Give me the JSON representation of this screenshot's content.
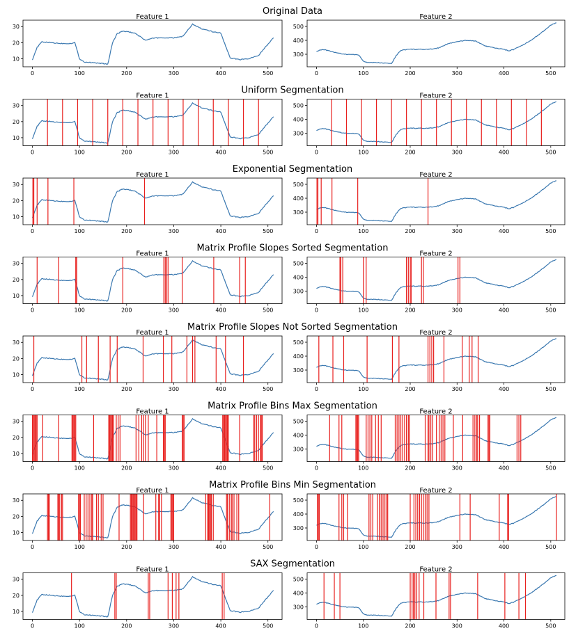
{
  "figure": {
    "line_color": "#3a78b0",
    "seg_color": "#e8201e",
    "subplot_titles": [
      "Feature 1",
      "Feature 2"
    ]
  },
  "chart_data": [
    {
      "type": "line",
      "title": "Original Data",
      "x": [
        0,
        10,
        20,
        40,
        60,
        80,
        90,
        100,
        110,
        130,
        150,
        160,
        170,
        180,
        190,
        200,
        220,
        240,
        260,
        280,
        300,
        320,
        340,
        360,
        380,
        400,
        410,
        420,
        440,
        460,
        480,
        500,
        512
      ],
      "series": [
        {
          "values": [
            9.5,
            17,
            20.5,
            20,
            19.5,
            19.5,
            20,
            10,
            8,
            7.5,
            7,
            6.5,
            20,
            25.5,
            27,
            27,
            25.5,
            21.5,
            23,
            23,
            23,
            24,
            31.5,
            28.5,
            27,
            26,
            18,
            10.5,
            9.5,
            10,
            12,
            19,
            23
          ]
        },
        {
          "values": [
            320,
            333,
            330,
            312,
            300,
            298,
            295,
            250,
            240,
            240,
            237,
            233,
            290,
            328,
            333,
            336,
            335,
            335,
            345,
            375,
            390,
            400,
            395,
            360,
            345,
            335,
            325,
            333,
            365,
            405,
            455,
            510,
            525
          ]
        }
      ],
      "xticks": [
        0,
        100,
        200,
        300,
        400,
        500
      ],
      "yticks": [
        [
          10,
          20,
          30
        ],
        [
          300,
          400,
          500
        ]
      ],
      "xlim": [
        -20,
        530
      ],
      "ylim": [
        [
          5,
          34
        ],
        [
          210,
          545
        ]
      ],
      "splits": [
        [],
        []
      ]
    },
    {
      "type": "line",
      "title": "Uniform Segmentation",
      "xticks": [
        0,
        100,
        200,
        300,
        400,
        500
      ],
      "yticks": [
        [
          10,
          20,
          30
        ],
        [
          300,
          400,
          500
        ]
      ],
      "xlim": [
        -20,
        530
      ],
      "ylim": [
        [
          5,
          34
        ],
        [
          210,
          545
        ]
      ],
      "splits": [
        [
          32,
          64,
          96,
          128,
          160,
          192,
          224,
          256,
          288,
          320,
          352,
          384,
          416,
          448,
          480
        ],
        [
          32,
          64,
          96,
          128,
          160,
          192,
          224,
          256,
          288,
          320,
          352,
          384,
          416,
          448,
          480
        ]
      ]
    },
    {
      "type": "line",
      "title": "Exponential Segmentation",
      "xticks": [
        0,
        100,
        200,
        300,
        400,
        500
      ],
      "yticks": [
        [
          10,
          20,
          30
        ],
        [
          300,
          400,
          500
        ]
      ],
      "xlim": [
        -20,
        530
      ],
      "ylim": [
        [
          5,
          34
        ],
        [
          210,
          545
        ]
      ],
      "splits": [
        [
          1,
          3,
          10,
          33,
          88,
          238
        ],
        [
          1,
          3,
          10,
          33,
          88,
          238
        ]
      ]
    },
    {
      "type": "line",
      "title": "Matrix Profile Slopes Sorted Segmentation",
      "xticks": [
        0,
        100,
        200,
        300,
        400,
        500
      ],
      "yticks": [
        [
          10,
          20,
          30
        ],
        [
          300,
          400,
          500
        ]
      ],
      "xlim": [
        -20,
        530
      ],
      "ylim": [
        [
          5,
          34
        ],
        [
          210,
          545
        ]
      ],
      "splits": [
        [
          10,
          56,
          92,
          94,
          192,
          279,
          282,
          285,
          288,
          318,
          385,
          440,
          452
        ],
        [
          50,
          52,
          56,
          100,
          106,
          192,
          196,
          200,
          202,
          224,
          228,
          302,
          306
        ]
      ]
    },
    {
      "type": "line",
      "title": "Matrix Profile Slopes Not Sorted Segmentation",
      "xticks": [
        0,
        100,
        200,
        300,
        400,
        500
      ],
      "yticks": [
        [
          10,
          20,
          30
        ],
        [
          300,
          400,
          500
        ]
      ],
      "xlim": [
        -20,
        530
      ],
      "ylim": [
        [
          5,
          34
        ],
        [
          210,
          545
        ]
      ],
      "splits": [
        [
          3,
          105,
          115,
          140,
          165,
          180,
          235,
          278,
          296,
          328,
          340,
          345,
          390,
          410,
          448
        ],
        [
          5,
          35,
          58,
          108,
          162,
          176,
          238,
          242,
          246,
          250,
          272,
          311,
          326,
          332,
          345
        ]
      ]
    },
    {
      "type": "line",
      "title": "Matrix Profile Bins Max Segmentation",
      "xticks": [
        0,
        100,
        200,
        300,
        400,
        500
      ],
      "yticks": [
        [
          10,
          20,
          30
        ],
        [
          300,
          400,
          500
        ]
      ],
      "xlim": [
        -20,
        530
      ],
      "ylim": [
        [
          5,
          34
        ],
        [
          210,
          545
        ]
      ],
      "splits": [
        [
          0,
          2,
          4,
          6,
          8,
          10,
          22,
          56,
          84,
          86,
          88,
          90,
          92,
          130,
          162,
          164,
          166,
          168,
          170,
          172,
          178,
          182,
          186,
          220,
          226,
          232,
          236,
          240,
          246,
          264,
          278,
          280,
          282,
          318,
          320,
          322,
          404,
          406,
          408,
          410,
          412,
          414,
          416,
          440,
          470,
          472,
          476,
          480,
          484,
          486,
          488
        ],
        [
          28,
          48,
          54,
          84,
          86,
          88,
          90,
          106,
          110,
          114,
          118,
          126,
          132,
          138,
          168,
          172,
          176,
          180,
          184,
          188,
          192,
          196,
          198,
          232,
          238,
          240,
          244,
          248,
          256,
          262,
          266,
          270,
          274,
          292,
          312,
          334,
          338,
          342,
          344,
          348,
          366,
          368,
          370,
          428,
          432,
          436
        ]
      ]
    },
    {
      "type": "line",
      "title": "Matrix Profile Bins Min Segmentation",
      "xticks": [
        0,
        100,
        200,
        300,
        400,
        500
      ],
      "yticks": [
        [
          10,
          20,
          30
        ],
        [
          300,
          400,
          500
        ]
      ],
      "xlim": [
        -20,
        530
      ],
      "ylim": [
        [
          5,
          34
        ],
        [
          210,
          545
        ]
      ],
      "splits": [
        [
          32,
          34,
          36,
          54,
          56,
          58,
          62,
          64,
          98,
          100,
          102,
          110,
          114,
          118,
          122,
          126,
          128,
          136,
          140,
          146,
          150,
          184,
          208,
          210,
          212,
          214,
          216,
          218,
          220,
          222,
          236,
          262,
          268,
          270,
          274,
          294,
          296,
          298,
          300,
          368,
          372,
          374,
          376,
          378,
          380,
          384,
          412,
          414,
          418,
          422,
          424,
          428,
          434,
          438,
          504
        ],
        [
          2,
          4,
          6,
          48,
          54,
          58,
          66,
          112,
          116,
          120,
          130,
          134,
          138,
          142,
          146,
          150,
          152,
          200,
          208,
          212,
          216,
          220,
          224,
          228,
          232,
          236,
          240,
          306,
          328,
          390,
          408,
          410,
          512
        ]
      ]
    },
    {
      "type": "line",
      "title": "SAX Segmentation",
      "xticks": [
        0,
        100,
        200,
        300,
        400,
        500
      ],
      "yticks": [
        [
          10,
          20,
          30
        ],
        [
          300,
          400,
          500
        ]
      ],
      "xlim": [
        -20,
        530
      ],
      "ylim": [
        [
          5,
          34
        ],
        [
          210,
          545
        ]
      ],
      "splits": [
        [
          83,
          175,
          178,
          246,
          249,
          288,
          297,
          305,
          311,
          403,
          407
        ],
        [
          16,
          38,
          50,
          200,
          204,
          207,
          210,
          214,
          219,
          229,
          255,
          283,
          286,
          344,
          402,
          432,
          446
        ]
      ]
    }
  ]
}
